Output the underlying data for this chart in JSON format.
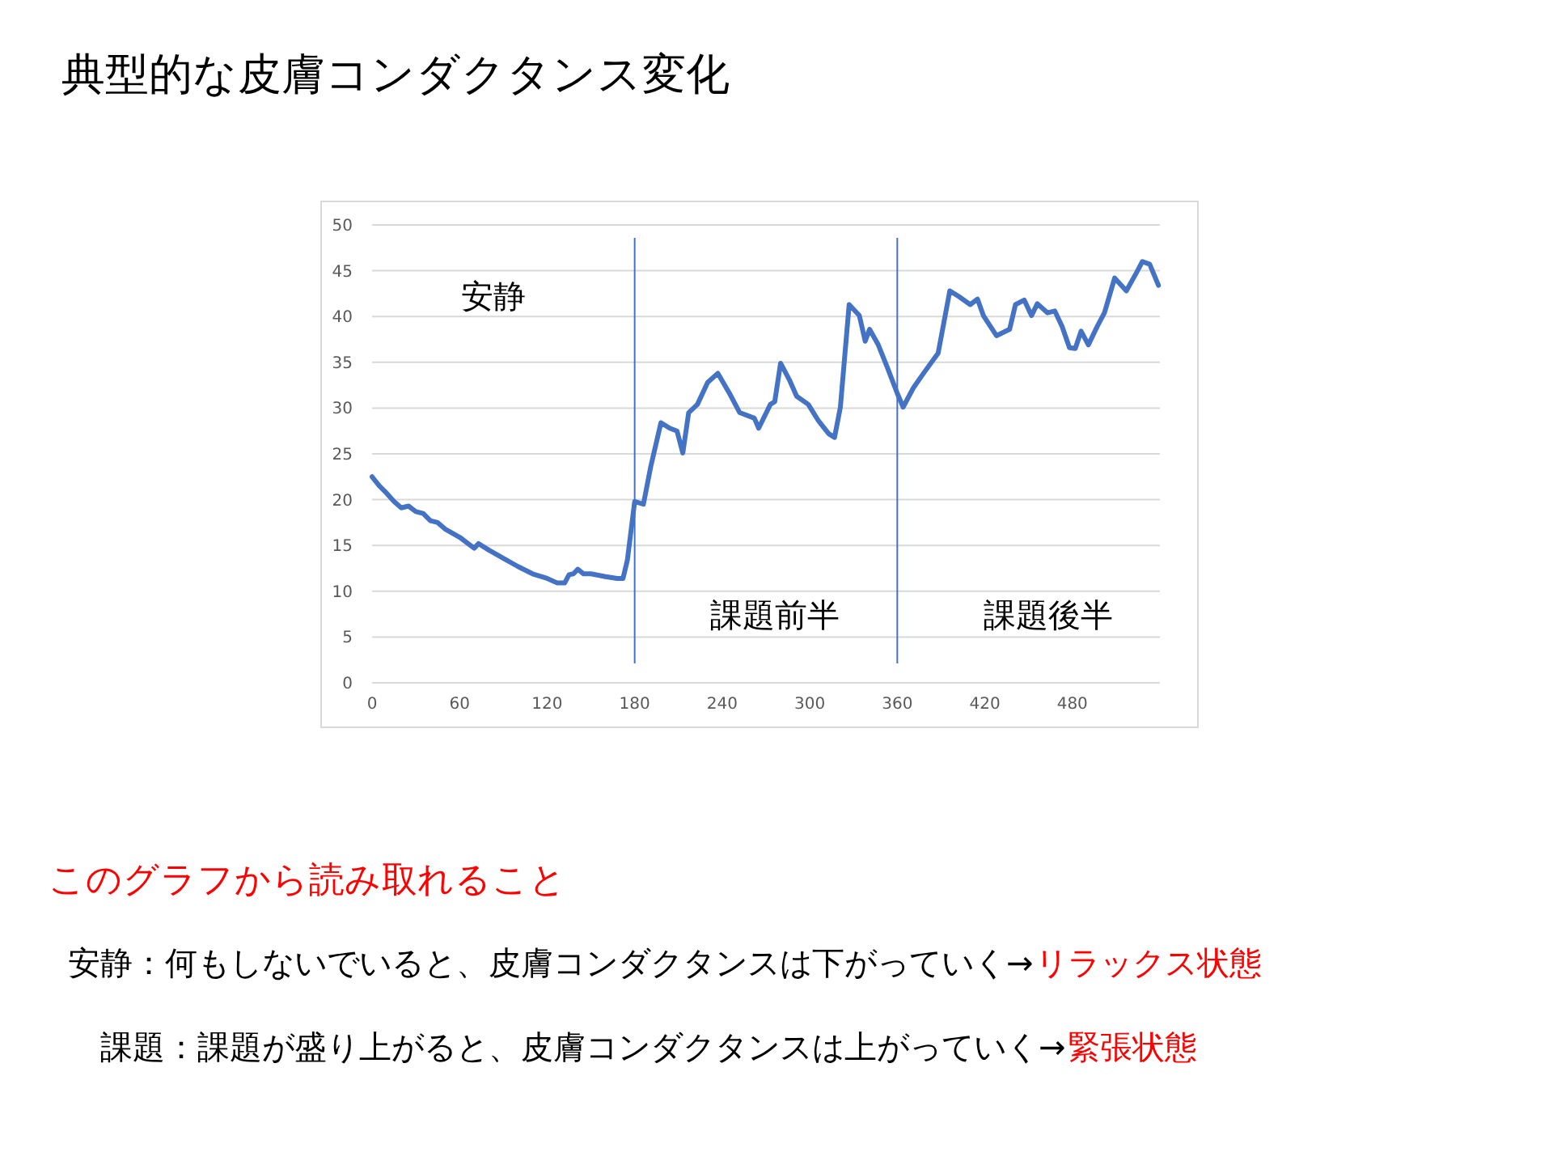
{
  "chart_data": {
    "type": "line",
    "title": "典型的な皮膚コンダクタンス変化",
    "x": [
      0,
      5,
      10,
      15,
      20,
      25,
      30,
      35,
      40,
      45,
      50,
      60,
      70,
      73,
      80,
      90,
      100,
      110,
      120,
      127,
      132,
      135,
      138,
      141,
      145,
      150,
      160,
      168,
      172,
      175,
      180,
      186,
      191,
      198,
      204,
      209,
      213,
      217,
      223,
      230,
      237,
      245,
      252,
      262,
      265,
      273,
      276,
      280,
      286,
      291,
      299,
      306,
      313,
      317,
      321,
      327,
      334,
      338,
      341,
      347,
      353,
      360,
      364,
      371,
      378,
      388,
      396,
      402,
      410,
      415,
      419,
      428,
      437,
      441,
      447,
      452,
      456,
      463,
      468,
      473,
      478,
      482,
      486,
      491,
      497,
      502,
      509,
      517,
      524,
      528,
      533,
      539
    ],
    "series": [
      {
        "color": "#4472c4",
        "values": [
          22.5,
          21.5,
          20.7,
          19.8,
          19.1,
          19.3,
          18.7,
          18.5,
          17.7,
          17.5,
          16.8,
          15.9,
          14.7,
          15.2,
          14.5,
          13.6,
          12.7,
          11.9,
          11.4,
          10.9,
          10.9,
          11.8,
          11.9,
          12.4,
          11.9,
          11.9,
          11.6,
          11.4,
          11.4,
          13.4,
          19.8,
          19.5,
          23.6,
          28.4,
          27.8,
          27.5,
          25.1,
          29.5,
          30.4,
          32.8,
          33.8,
          31.6,
          29.5,
          28.9,
          27.8,
          30.4,
          30.7,
          34.9,
          33.1,
          31.3,
          30.4,
          28.6,
          27.2,
          26.8,
          30.1,
          41.3,
          40.1,
          37.3,
          38.6,
          36.9,
          34.5,
          31.6,
          30.1,
          32.2,
          33.8,
          36.0,
          42.8,
          42.2,
          41.3,
          41.9,
          40.1,
          37.9,
          38.6,
          41.3,
          41.8,
          40.1,
          41.4,
          40.4,
          40.6,
          38.9,
          36.6,
          36.5,
          38.4,
          36.9,
          38.9,
          40.4,
          44.2,
          42.8,
          44.8,
          46.0,
          45.7,
          43.4
        ]
      }
    ],
    "xlim": [
      0,
      540
    ],
    "xticks": [
      0,
      60,
      120,
      180,
      240,
      300,
      360,
      420,
      480
    ],
    "ylim": [
      0,
      50
    ],
    "yticks": [
      0,
      5,
      10,
      15,
      20,
      25,
      30,
      35,
      40,
      45,
      50
    ],
    "grid": "y",
    "line_style": "solid",
    "marker": "none",
    "ref_lines": [
      {
        "axis": "x",
        "value": 180,
        "color": "#4472c4"
      },
      {
        "axis": "x",
        "value": 360,
        "color": "#4472c4"
      }
    ],
    "annotations": [
      "安静",
      "課題前半",
      "課題後半",
      "このグラフから読み取れること",
      "安静：何もしないでいると、皮膚コンダクタンスは下がっていく→",
      "リラックス状態",
      "課題：課題が盛り上がると、皮膚コンダクタンスは上がっていく→",
      "緊張状態"
    ]
  }
}
